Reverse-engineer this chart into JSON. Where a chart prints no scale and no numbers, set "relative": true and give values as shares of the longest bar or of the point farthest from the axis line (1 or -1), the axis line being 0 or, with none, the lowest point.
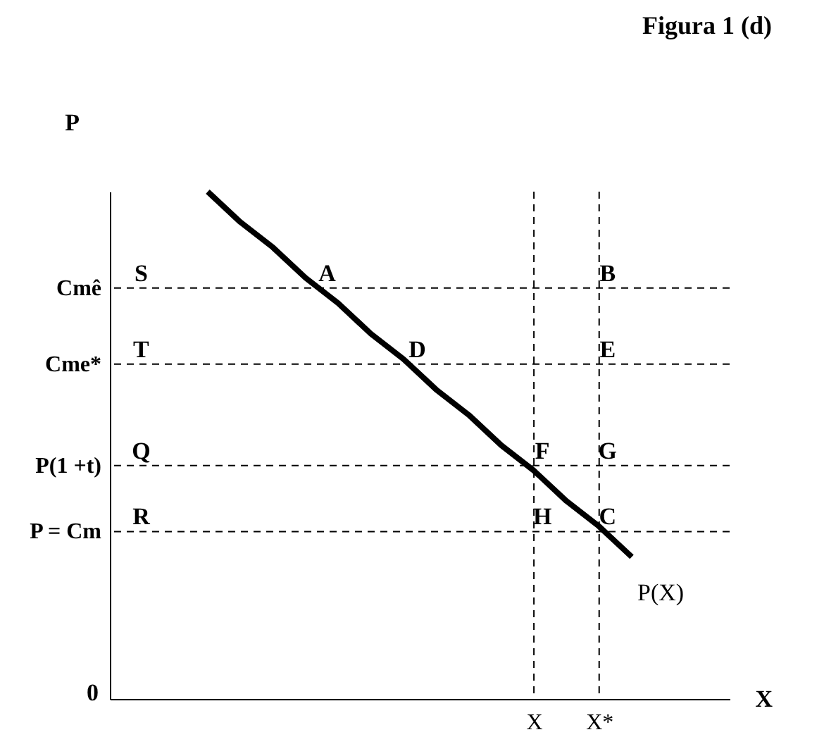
{
  "chart_data": {
    "type": "line",
    "title": "Figura 1 (d)",
    "xlabel": "X",
    "ylabel": "P",
    "relative": true,
    "categories": [
      null,
      null,
      null,
      null,
      null,
      null,
      null,
      null,
      null,
      null,
      null,
      null,
      null,
      "X",
      null,
      "X*",
      null,
      null,
      null,
      null
    ],
    "series": [
      {
        "name": "P(X)",
        "color": "#000000",
        "values": [
          null,
          null,
          null,
          1,
          0.94,
          0.89,
          0.83,
          0.78,
          0.72,
          0.67,
          0.61,
          0.56,
          0.5,
          0.45,
          0.39,
          0.34,
          0.28,
          null,
          null,
          null
        ]
      }
    ],
    "ref_lines": [
      {
        "axis": "y",
        "value": 0.81,
        "label": "Cmê",
        "line_style": "dashed"
      },
      {
        "axis": "y",
        "value": 0.66,
        "label": "Cme*",
        "line_style": "dashed"
      },
      {
        "axis": "y",
        "value": 0.46,
        "label": "P(1 +t)",
        "line_style": "dashed"
      },
      {
        "axis": "y",
        "value": 0.33,
        "label": "P = Cm",
        "line_style": "dashed"
      },
      {
        "axis": "x",
        "value": "X",
        "line_style": "dashed"
      },
      {
        "axis": "x",
        "value": "X*",
        "line_style": "dashed"
      }
    ],
    "annotations": [
      "0",
      {
        "text": "S",
        "y": 0.81
      },
      {
        "text": "A",
        "y": 0.81
      },
      {
        "text": "B",
        "x": "X*",
        "y": 0.81
      },
      {
        "text": "T",
        "y": 0.66
      },
      {
        "text": "D",
        "y": 0.66
      },
      {
        "text": "E",
        "x": "X*",
        "y": 0.66
      },
      {
        "text": "Q",
        "y": 0.46
      },
      {
        "text": "F",
        "x": "X",
        "y": 0.46
      },
      {
        "text": "G",
        "x": "X*",
        "y": 0.46
      },
      {
        "text": "R",
        "y": 0.33
      },
      {
        "text": "H",
        "x": "X",
        "y": 0.33
      },
      {
        "text": "C",
        "x": "X*",
        "y": 0.33
      }
    ],
    "grid": false,
    "legend": false,
    "line_style": "solid"
  }
}
